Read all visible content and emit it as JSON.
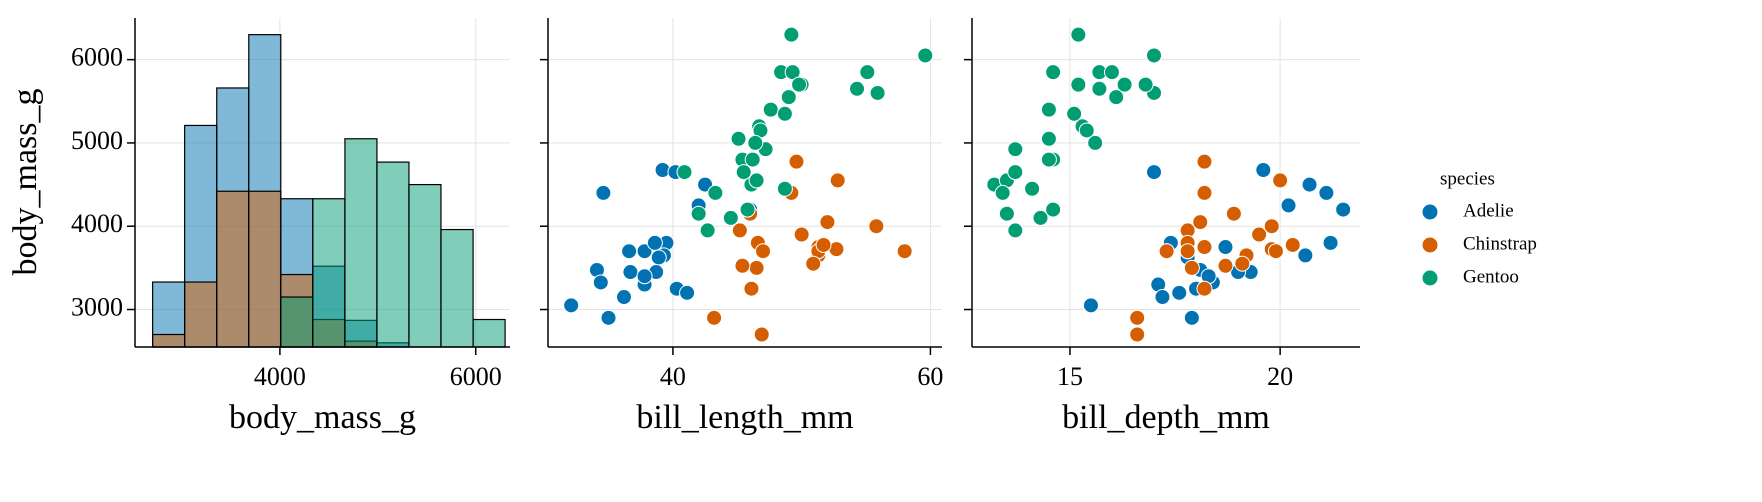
{
  "chart_data": [
    {
      "type": "histogram",
      "x_label": "body_mass_g",
      "y_label": "body_mass_g",
      "legend_title": "species",
      "bins": [
        2700,
        3027,
        3355,
        3682,
        4009,
        4336,
        4664,
        4991,
        5318,
        5645,
        5973,
        6300
      ],
      "series": [
        {
          "name": "Adelie",
          "color": "#0173b2",
          "values": [
            3330,
            5210,
            5660,
            6300,
            4330,
            3520,
            2870,
            2600,
            null,
            null,
            null
          ]
        },
        {
          "name": "Chinstrap",
          "color": "#d55e00",
          "values": [
            2700,
            3330,
            4420,
            4420,
            3420,
            2880,
            2620,
            null,
            null,
            null,
            null
          ]
        },
        {
          "name": "Gentoo",
          "color": "#029e73",
          "values": [
            null,
            null,
            null,
            null,
            3150,
            4330,
            5050,
            4770,
            4500,
            3960,
            2880
          ]
        }
      ],
      "xlim": [
        2520,
        6350
      ],
      "xticks": [
        4000,
        6000
      ],
      "ylim": [
        2550,
        6500
      ],
      "yticks": [
        3000,
        4000,
        5000,
        6000
      ],
      "grid": true
    },
    {
      "type": "scatter",
      "x_label": "bill_length_mm",
      "series": [
        {
          "name": "Adelie",
          "color": "#0173b2",
          "x": [
            39.1,
            39.5,
            40.3,
            36.7,
            39.3,
            38.9,
            39.2,
            34.1,
            42.0,
            37.8,
            37.8,
            41.1,
            38.6,
            34.6,
            36.6,
            38.7,
            42.5,
            34.4,
            46.0,
            37.8,
            32.1,
            36.2,
            35.0,
            40.2
          ],
          "values": [
            3750,
            3800,
            3250,
            3450,
            3650,
            3625,
            4675,
            3475,
            4250,
            3300,
            3700,
            3200,
            3800,
            4400,
            3700,
            3450,
            4500,
            3325,
            4200,
            3400,
            3050,
            3150,
            2900,
            4650
          ]
        },
        {
          "name": "Chinstrap",
          "color": "#d55e00",
          "x": [
            46.5,
            50.0,
            51.3,
            45.4,
            52.7,
            45.2,
            46.1,
            51.3,
            46.0,
            51.3,
            46.6,
            51.7,
            47.0,
            52.0,
            58.0,
            49.2,
            50.9,
            43.2,
            46.9,
            55.8,
            52.8,
            49.6
          ],
          "values": [
            3500,
            3900,
            3650,
            3525,
            3725,
            3950,
            3250,
            3750,
            4150,
            3700,
            3800,
            3775,
            3700,
            4050,
            3700,
            4400,
            3550,
            2900,
            2700,
            4000,
            4550,
            4775
          ]
        },
        {
          "name": "Gentoo",
          "color": "#029e73",
          "x": [
            46.1,
            50.0,
            48.7,
            50.0,
            47.6,
            46.5,
            45.4,
            46.7,
            43.3,
            46.8,
            40.9,
            49.0,
            45.5,
            48.4,
            45.8,
            49.3,
            42.0,
            49.2,
            46.2,
            48.7,
            59.6,
            55.9,
            55.1,
            44.5,
            47.2,
            46.4,
            45.1,
            54.3,
            49.8,
            42.7
          ],
          "values": [
            4500,
            5700,
            4450,
            5700,
            5400,
            4550,
            4800,
            5200,
            4400,
            5150,
            4650,
            5550,
            4650,
            5850,
            4200,
            5850,
            4150,
            6300,
            4800,
            5350,
            6050,
            5600,
            5850,
            4100,
            4925,
            5000,
            5050,
            5650,
            5700,
            3950
          ]
        }
      ],
      "xlim": [
        30.3,
        60.9
      ],
      "xticks": [
        40,
        60
      ],
      "ylim": [
        2550,
        6500
      ],
      "grid": true
    },
    {
      "type": "scatter",
      "x_label": "bill_depth_mm",
      "series": [
        {
          "name": "Adelie",
          "color": "#0173b2",
          "x": [
            18.7,
            17.4,
            18.0,
            19.3,
            20.6,
            17.8,
            19.6,
            18.1,
            20.2,
            17.1,
            17.3,
            17.6,
            21.2,
            21.1,
            17.8,
            19.0,
            20.7,
            18.4,
            21.5,
            18.3,
            15.5,
            17.2,
            17.9,
            17.0
          ],
          "values": [
            3750,
            3800,
            3250,
            3450,
            3650,
            3625,
            4675,
            3475,
            4250,
            3300,
            3700,
            3200,
            3800,
            4400,
            3700,
            3450,
            4500,
            3325,
            4200,
            3400,
            3050,
            3150,
            2900,
            4650
          ]
        },
        {
          "name": "Chinstrap",
          "color": "#d55e00",
          "x": [
            17.9,
            19.5,
            19.2,
            18.7,
            19.8,
            17.8,
            18.2,
            18.2,
            18.9,
            19.9,
            17.8,
            20.3,
            17.3,
            18.1,
            17.8,
            18.2,
            19.1,
            16.6,
            16.6,
            19.8,
            20.0,
            18.2
          ],
          "values": [
            3500,
            3900,
            3650,
            3525,
            3725,
            3950,
            3250,
            3750,
            4150,
            3700,
            3800,
            3775,
            3700,
            4050,
            3700,
            4400,
            3550,
            2900,
            2700,
            4000,
            4550,
            4775
          ]
        },
        {
          "name": "Gentoo",
          "color": "#029e73",
          "x": [
            13.2,
            16.3,
            14.1,
            15.2,
            14.5,
            13.5,
            14.6,
            15.3,
            13.4,
            15.4,
            13.7,
            16.1,
            13.7,
            14.6,
            14.6,
            15.7,
            13.5,
            15.2,
            14.5,
            15.1,
            17.0,
            17.0,
            16.0,
            14.3,
            13.7,
            15.6,
            14.5,
            15.7,
            16.8,
            13.7
          ],
          "values": [
            4500,
            5700,
            4450,
            5700,
            5400,
            4550,
            4800,
            5200,
            4400,
            5150,
            4650,
            5550,
            4650,
            5850,
            4200,
            5850,
            4150,
            6300,
            4800,
            5350,
            6050,
            5600,
            5850,
            4100,
            4925,
            5000,
            5050,
            5650,
            5700,
            3950
          ]
        }
      ],
      "xlim": [
        12.67,
        21.9
      ],
      "xticks": [
        15,
        20
      ],
      "ylim": [
        2550,
        6500
      ],
      "grid": true
    }
  ]
}
